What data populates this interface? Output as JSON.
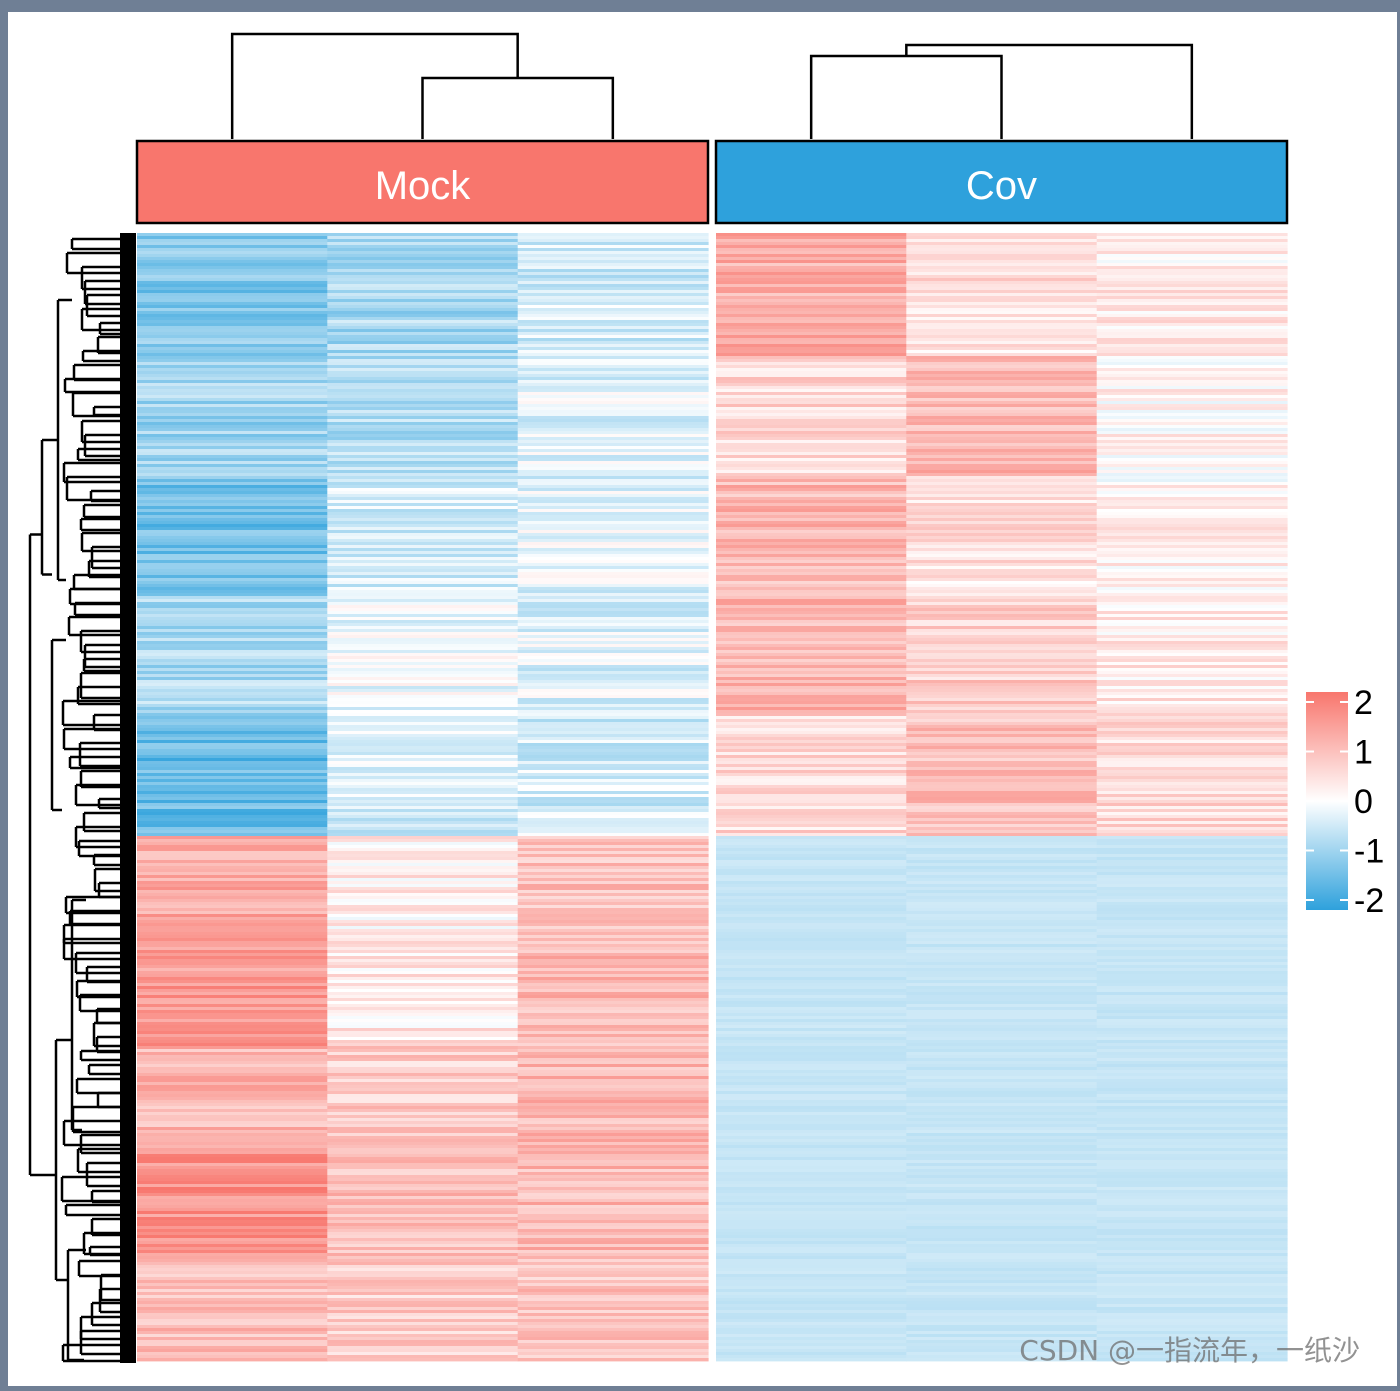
{
  "chart_data": {
    "type": "heatmap",
    "title": "",
    "xlabel": "",
    "ylabel": "",
    "column_groups": [
      {
        "label": "Mock",
        "color": "#F8766D",
        "columns": 3
      },
      {
        "label": "Cov",
        "color": "#2EA1DC",
        "columns": 3
      }
    ],
    "row_clusters": [
      {
        "name": "top",
        "row_fraction": 0.535,
        "mean_values": [
          -1.1,
          -0.5,
          -0.6,
          0.9,
          0.7,
          0.5
        ]
      },
      {
        "name": "bottom",
        "row_fraction": 0.465,
        "mean_values": [
          1.3,
          0.6,
          0.7,
          -0.55,
          -0.55,
          -0.55
        ]
      }
    ],
    "color_scale": {
      "min": -2,
      "max": 2,
      "low_color": "#2EA1DC",
      "mid_color": "#FFFFFF",
      "high_color": "#F8766D"
    },
    "legend": {
      "position": "right",
      "ticks": [
        "2",
        "1",
        "0",
        "-1",
        "-2"
      ]
    },
    "row_dendrogram": true,
    "column_dendrogram": true
  },
  "watermark": "CSDN @一指流年，一纸沙"
}
